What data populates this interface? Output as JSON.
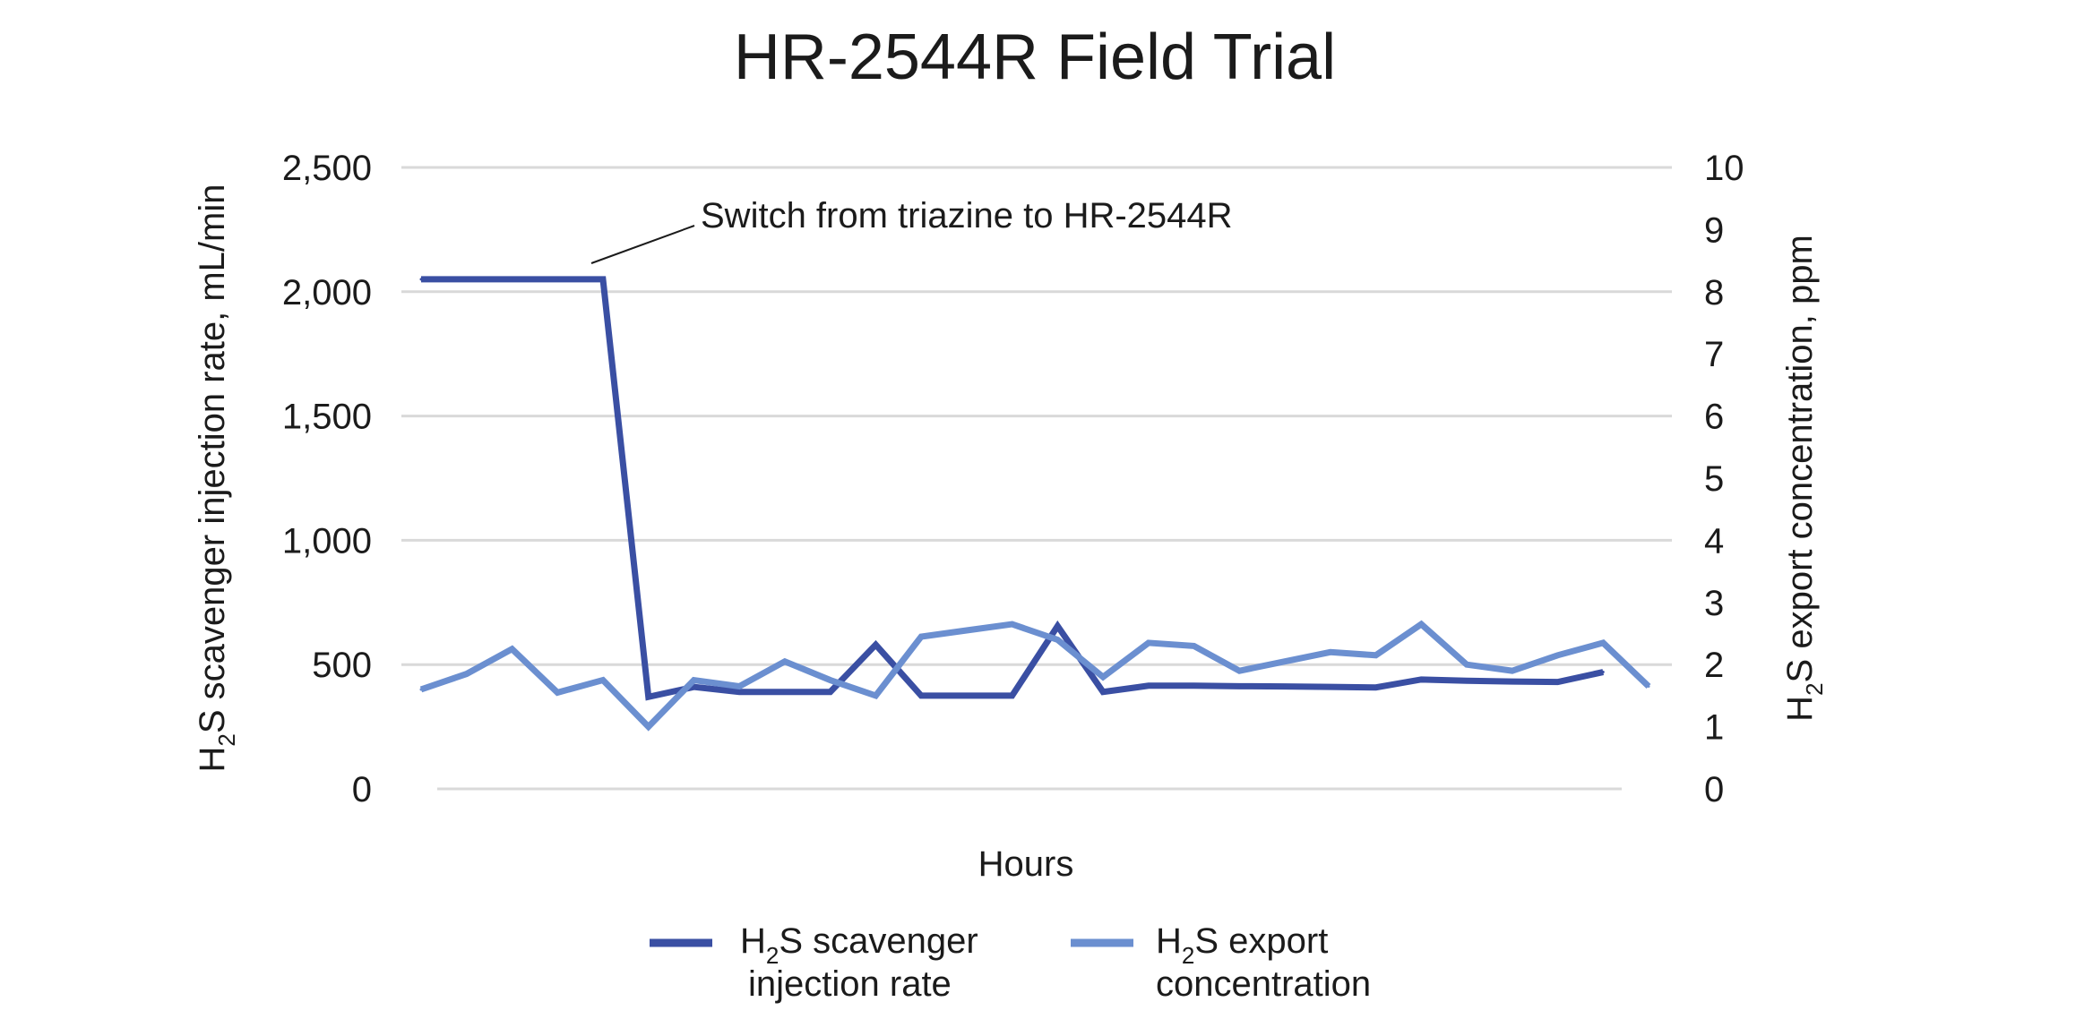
{
  "chart_data": {
    "type": "line",
    "title": "HR-2544R Field Trial",
    "xlabel": "Hours",
    "ylabel": "H2S scavenger injection rate, mL/min",
    "ylabel_parts": {
      "pre": "H",
      "sub": "2",
      "post": "S scavenger injection rate, mL/min"
    },
    "ylabel_right": "H2S export concentration, ppm",
    "ylabel_right_parts": {
      "pre": "H",
      "sub": "2",
      "post": "S export concentration, ppm"
    },
    "ylim": [
      0,
      2500
    ],
    "ylim_right": [
      0,
      10
    ],
    "yticks": [
      "0",
      "500",
      "1,000",
      "1,500",
      "2,000",
      "2,500"
    ],
    "yticks_right": [
      "0",
      "1",
      "2",
      "3",
      "4",
      "5",
      "6",
      "7",
      "8",
      "9",
      "10"
    ],
    "grid": true,
    "legend_position": "bottom",
    "annotation": "Switch from triazine to HR-2544R",
    "x": [
      0,
      1,
      2,
      3,
      4,
      5,
      6,
      7,
      8,
      9,
      10,
      11,
      12,
      13,
      14,
      15,
      16,
      17,
      18,
      19,
      20,
      21,
      22,
      23,
      24,
      25,
      26,
      27
    ],
    "series": [
      {
        "name": "H2S scavenger injection rate",
        "legend_parts": {
          "pre": "H",
          "sub": "2",
          "post": "S scavenger",
          "line2": "injection rate"
        },
        "axis": "left",
        "color": "#3a4fa3",
        "values": [
          2050,
          2050,
          2050,
          2050,
          2050,
          370,
          410,
          390,
          390,
          390,
          580,
          375,
          375,
          375,
          655,
          390,
          415,
          415,
          413,
          412,
          410,
          408,
          440,
          435,
          432,
          430,
          470,
          null
        ]
      },
      {
        "name": "H2S export concentration",
        "legend_parts": {
          "pre": "H",
          "sub": "2",
          "post": "S export",
          "line2": "concentration"
        },
        "axis": "right",
        "color": "#6b8fd0",
        "values": [
          1.6,
          1.85,
          2.25,
          1.55,
          1.75,
          1.0,
          1.75,
          1.65,
          2.05,
          1.75,
          1.5,
          2.45,
          2.55,
          2.65,
          2.4,
          1.8,
          2.35,
          2.3,
          1.9,
          2.05,
          2.2,
          2.15,
          2.65,
          2.0,
          1.9,
          2.15,
          2.35,
          1.65
        ]
      }
    ]
  }
}
